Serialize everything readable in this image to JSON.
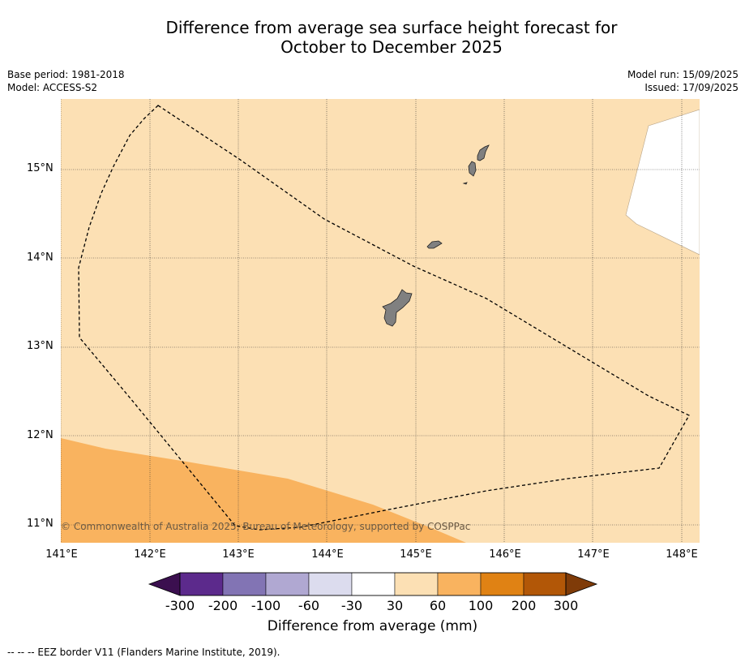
{
  "title_line1": "Difference from average sea surface height forecast for",
  "title_line2": "October to December 2025",
  "base_period": "Base period: 1981-2018",
  "model": "Model: ACCESS-S2",
  "model_run": "Model run: 15/09/2025",
  "issued": "Issued: 17/09/2025",
  "lat_labels": [
    "15°N",
    "14°N",
    "13°N",
    "12°N",
    "11°N"
  ],
  "lon_labels": [
    "141°E",
    "142°E",
    "143°E",
    "144°E",
    "145°E",
    "146°E",
    "147°E",
    "148°E"
  ],
  "copyright": "© Commonwealth of Australia 2025, Bureau of Meteorology, supported by COSPPac",
  "colorbar": {
    "labels": [
      "-300",
      "-200",
      "-100",
      "-60",
      "-30",
      "30",
      "60",
      "100",
      "200",
      "300"
    ],
    "colors": [
      "#3b0f4f",
      "#5c2a8c",
      "#8274b4",
      "#b0a8d2",
      "#dcdcee",
      "#ffffff",
      "#fce0b4",
      "#f9b35f",
      "#e08214",
      "#b25707",
      "#7f3b08"
    ],
    "title": "Difference from average (mm)"
  },
  "map_colors": {
    "cat_30_60": "#fce0b4",
    "cat_60_100": "#f9b35f",
    "land": "#808080"
  },
  "footer": "--  --  -- EEZ border V11 (Flanders Marine Institute, 2019)."
}
